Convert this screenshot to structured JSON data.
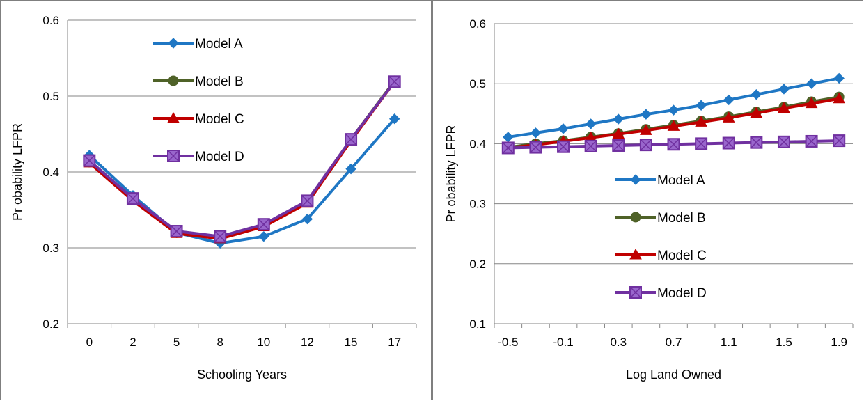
{
  "chart_data": [
    {
      "type": "line",
      "title": "",
      "xlabel": "Schooling Years",
      "ylabel": "Pr obability LFPR",
      "categories": [
        "0",
        "2",
        "5",
        "8",
        "10",
        "12",
        "15",
        "17"
      ],
      "ylim": [
        0.2,
        0.6
      ],
      "yticks": [
        "0.2",
        "0.3",
        "0.4",
        "0.5",
        "0.6"
      ],
      "grid": true,
      "legend": "upper-center",
      "series": [
        {
          "name": "Model A",
          "color": "#1f77c4",
          "marker": "diamond",
          "values": [
            0.422,
            0.369,
            0.32,
            0.306,
            0.315,
            0.338,
            0.404,
            0.47
          ]
        },
        {
          "name": "Model B",
          "color": "#4f6228",
          "marker": "circle",
          "values": [
            0.413,
            0.364,
            0.32,
            0.313,
            0.33,
            0.361,
            0.443,
            0.52
          ]
        },
        {
          "name": "Model C",
          "color": "#c00000",
          "marker": "triangle",
          "values": [
            0.412,
            0.362,
            0.319,
            0.312,
            0.328,
            0.359,
            0.441,
            0.519
          ]
        },
        {
          "name": "Model D",
          "color": "#7030a0",
          "marker": "square-x",
          "values": [
            0.415,
            0.365,
            0.322,
            0.315,
            0.331,
            0.362,
            0.443,
            0.519
          ]
        }
      ]
    },
    {
      "type": "line",
      "title": "",
      "xlabel": "Log Land Owned",
      "ylabel": "Pr obability LFPR",
      "categories": [
        "-0.5",
        "-0.3",
        "-0.1",
        "0.1",
        "0.3",
        "0.5",
        "0.7",
        "0.9",
        "1.1",
        "1.3",
        "1.5",
        "1.7",
        "1.9"
      ],
      "xticklabels": [
        "-0.5",
        "-0.1",
        "0.3",
        "0.7",
        "1.1",
        "1.5",
        "1.9"
      ],
      "ylim": [
        0.1,
        0.6
      ],
      "yticks": [
        "0.1",
        "0.2",
        "0.3",
        "0.4",
        "0.5",
        "0.6"
      ],
      "grid": true,
      "legend": "center",
      "series": [
        {
          "name": "Model A",
          "color": "#1f77c4",
          "marker": "diamond",
          "values": [
            0.411,
            0.418,
            0.425,
            0.433,
            0.441,
            0.449,
            0.456,
            0.464,
            0.473,
            0.482,
            0.491,
            0.5,
            0.509
          ]
        },
        {
          "name": "Model B",
          "color": "#4f6228",
          "marker": "circle",
          "values": [
            0.394,
            0.4,
            0.405,
            0.411,
            0.417,
            0.424,
            0.431,
            0.438,
            0.445,
            0.453,
            0.461,
            0.47,
            0.478
          ]
        },
        {
          "name": "Model C",
          "color": "#c00000",
          "marker": "triangle",
          "values": [
            0.393,
            0.398,
            0.404,
            0.41,
            0.416,
            0.422,
            0.429,
            0.436,
            0.443,
            0.451,
            0.459,
            0.467,
            0.475
          ]
        },
        {
          "name": "Model D",
          "color": "#7030a0",
          "marker": "square-x",
          "values": [
            0.393,
            0.394,
            0.395,
            0.396,
            0.397,
            0.398,
            0.399,
            0.4,
            0.401,
            0.402,
            0.403,
            0.404,
            0.405
          ]
        }
      ]
    }
  ]
}
